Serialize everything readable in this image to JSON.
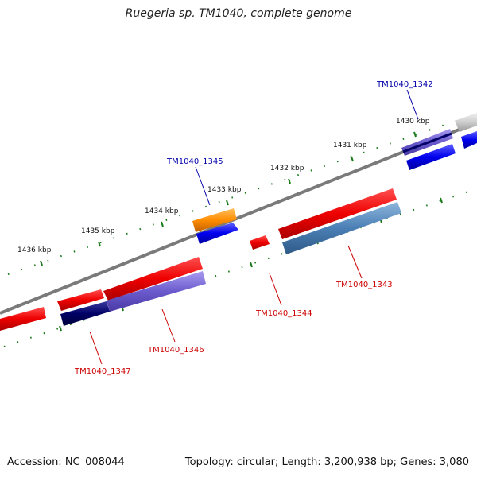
{
  "header": {
    "title": "Ruegeria sp. TM1040, complete genome"
  },
  "footer": {
    "accession": "Accession: NC_008044",
    "summary": "Topology: circular; Length: 3,200,938 bp; Genes: 3,080"
  },
  "ticks": {
    "outer_labels": [
      "1436 kbp",
      "1435 kbp",
      "1434 kbp",
      "1433 kbp",
      "1432 kbp",
      "1431 kbp",
      "1430 kbp"
    ]
  },
  "genes": {
    "tm1040_1342": "TM1040_1342",
    "tm1040_1343": "TM1040_1343",
    "tm1040_1344": "TM1040_1344",
    "tm1040_1345": "TM1040_1345",
    "tm1040_1346": "TM1040_1346",
    "tm1040_1347": "TM1040_1347"
  },
  "colors": {
    "forward_red": "#ee0000",
    "reverse_red": "#cc0000",
    "label_blue": "#0000aa",
    "steel_blue": "#4a7fb5",
    "slate_purple": "#6a5acd",
    "navy": "#000066",
    "orange": "#ff8c00",
    "blue": "#0000ee",
    "tick_green": "#1a7a1a",
    "backbone_grey": "#777777"
  }
}
